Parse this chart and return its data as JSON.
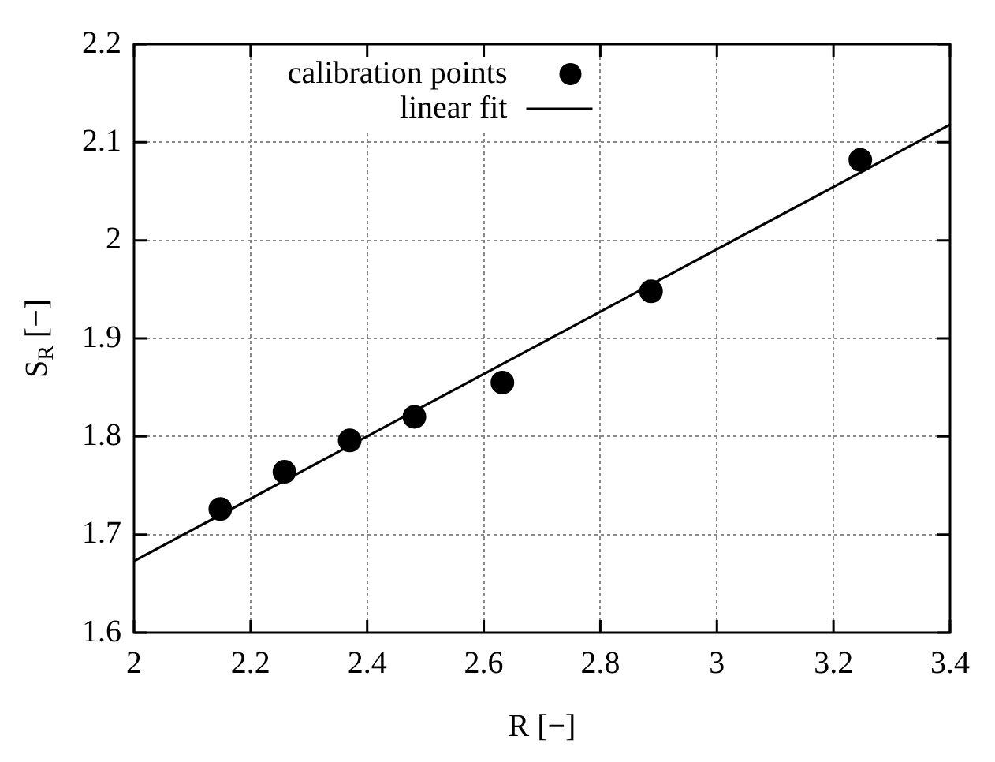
{
  "chart_data": {
    "type": "scatter",
    "xlabel": "R [−]",
    "ylabel": "S$_{R}$ [−]",
    "series": [
      {
        "name": "calibration points",
        "color": "#000000",
        "marker": "circle",
        "x": [
          2.148,
          2.258,
          2.37,
          2.481,
          2.632,
          2.887,
          3.246
        ],
        "values": [
          1.726,
          1.764,
          1.796,
          1.82,
          1.855,
          1.948,
          2.082
        ]
      },
      {
        "name": "linear fit",
        "type": "line",
        "color": "#000000",
        "marker": "none",
        "line_style": "solid",
        "x": [
          2,
          3.4
        ],
        "values": [
          1.673,
          2.118
        ]
      }
    ],
    "xlim": [
      2,
      3.4
    ],
    "xticks": [
      2,
      2.2,
      2.4,
      2.6,
      2.8,
      3,
      3.2,
      3.4
    ],
    "ylim": [
      1.6,
      2.2
    ],
    "yticks": [
      1.6,
      1.7,
      1.8,
      1.9,
      2,
      2.1,
      2.2
    ],
    "grid": true,
    "legend": "top"
  }
}
